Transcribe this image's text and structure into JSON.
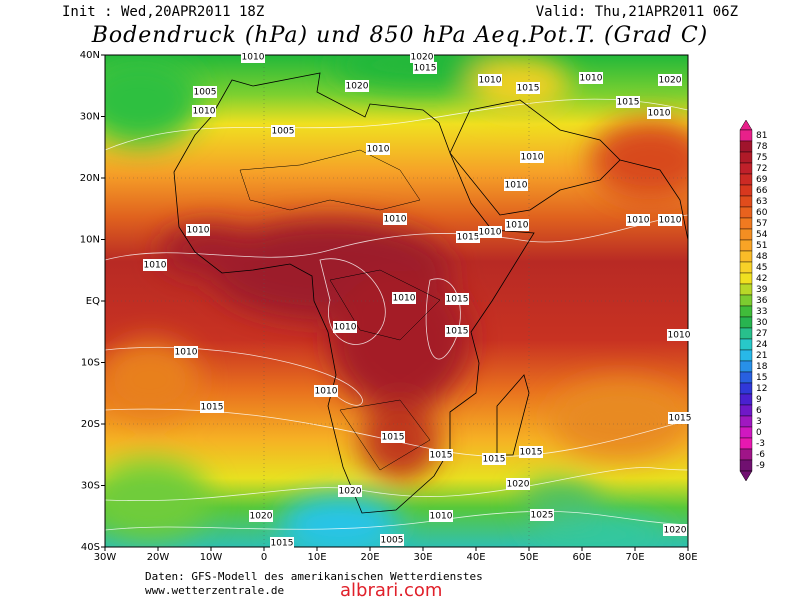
{
  "header": {
    "init": "Init : Wed,20APR2011 18Z",
    "valid": "Valid: Thu,21APR2011 06Z",
    "title": "Bodendruck (hPa) und 850 hPa Aeq.Pot.T. (Grad C)"
  },
  "map": {
    "lon_labels": [
      "30W",
      "20W",
      "10W",
      "0",
      "10E",
      "20E",
      "30E",
      "40E",
      "50E",
      "60E",
      "70E",
      "80E"
    ],
    "lat_labels": [
      "40N",
      "30N",
      "20N",
      "10N",
      "EQ",
      "10S",
      "20S",
      "30S",
      "40S"
    ],
    "isobar_labels": [
      "1020",
      "1015",
      "1010",
      "1020",
      "1005",
      "1010",
      "1005",
      "1010",
      "1010",
      "1015",
      "1010",
      "1020",
      "1015",
      "1010",
      "1010",
      "1010",
      "1010",
      "1010",
      "1015",
      "1010",
      "1010",
      "1010",
      "1010",
      "1010",
      "1010",
      "1015",
      "1010",
      "1015",
      "1010",
      "1010",
      "1010",
      "1015",
      "1015",
      "1015",
      "1015",
      "1015",
      "1015",
      "1020",
      "1020",
      "1010",
      "1025",
      "1020",
      "1005",
      "1015",
      "1020"
    ]
  },
  "colorbar": {
    "labels": [
      81,
      78,
      75,
      72,
      69,
      66,
      63,
      60,
      57,
      54,
      51,
      48,
      45,
      42,
      39,
      36,
      33,
      30,
      27,
      24,
      21,
      18,
      15,
      12,
      9,
      6,
      3,
      0,
      -3,
      -6,
      -9
    ]
  },
  "footer": {
    "source": "Daten: GFS-Modell des amerikanischen Wetterdienstes",
    "site": "www.wetterzentrale.de",
    "watermark": "albrari.com"
  }
}
